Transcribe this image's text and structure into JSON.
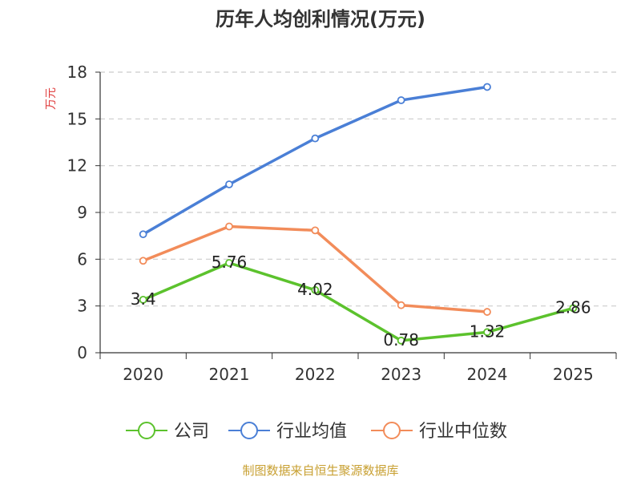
{
  "chart_data": {
    "type": "line",
    "title": "历年人均创利情况(万元)",
    "ylabel": "万元",
    "xlabel": "",
    "categories": [
      "2020",
      "2021",
      "2022",
      "2023",
      "2024",
      "2025"
    ],
    "ylim": [
      0,
      18
    ],
    "yticks": [
      0,
      3,
      6,
      9,
      12,
      15,
      18
    ],
    "grid": true,
    "legend_position": "bottom",
    "series": [
      {
        "name": "公司",
        "color": "#5cc22d",
        "values": [
          3.4,
          5.76,
          4.02,
          0.78,
          1.32,
          2.86
        ],
        "labels": [
          "3.4",
          "5.76",
          "4.02",
          "0.78",
          "1.32",
          "2.86"
        ]
      },
      {
        "name": "行业均值",
        "color": "#4a7fd6",
        "values": [
          7.6,
          10.8,
          13.75,
          16.2,
          17.05,
          null
        ]
      },
      {
        "name": "行业中位数",
        "color": "#f28c5a",
        "values": [
          5.9,
          8.1,
          7.85,
          3.05,
          2.62,
          null
        ]
      }
    ],
    "source": "制图数据来自恒生聚源数据库",
    "source_color": "#c8a032",
    "ylabel_color": "#e03c3c"
  }
}
